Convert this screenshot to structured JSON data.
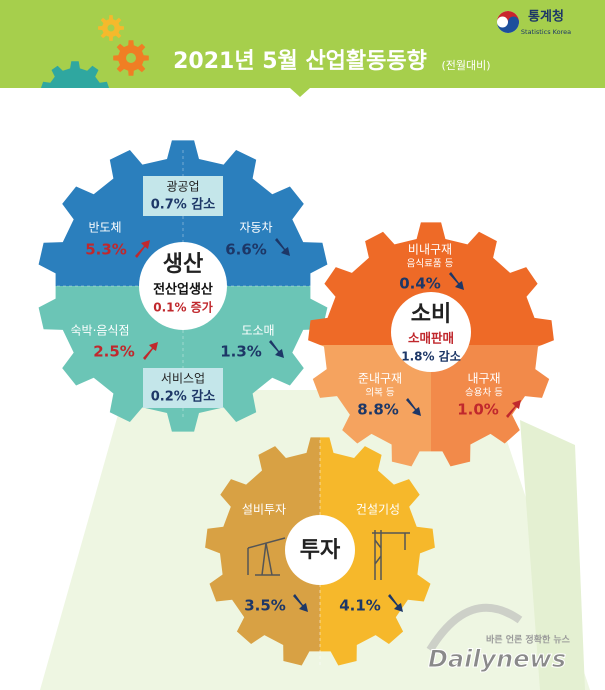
{
  "header": {
    "logo": "통계청",
    "logo_en": "Statistics Korea",
    "title": "2021년 5월 산업활동동향",
    "subtitle": "(전월대비)"
  },
  "production": {
    "label": "생산",
    "total_label": "전산업생산",
    "total_value": "0.1% 증가",
    "items": [
      {
        "name": "광공업",
        "value": "0.7% 감소"
      },
      {
        "name": "반도체",
        "value": "5.3%",
        "trend": "up"
      },
      {
        "name": "자동차",
        "value": "6.6%",
        "trend": "down"
      },
      {
        "name": "숙박·음식점",
        "value": "2.5%",
        "trend": "up"
      },
      {
        "name": "도소매",
        "value": "1.3%",
        "trend": "down"
      },
      {
        "name": "서비스업",
        "value": "0.2% 감소"
      }
    ]
  },
  "consumption": {
    "label": "소비",
    "total_label": "소매판매",
    "total_value": "1.8% 감소",
    "items": [
      {
        "name": "비내구재",
        "note": "음식료품 등",
        "value": "0.4%",
        "trend": "down"
      },
      {
        "name": "준내구재",
        "note": "의복 등",
        "value": "8.8%",
        "trend": "down"
      },
      {
        "name": "내구재",
        "note": "승용차 등",
        "value": "1.0%",
        "trend": "up"
      }
    ]
  },
  "investment": {
    "label": "투자",
    "items": [
      {
        "name": "설비투자",
        "value": "3.5%",
        "trend": "down"
      },
      {
        "name": "건설기성",
        "value": "4.1%",
        "trend": "down"
      }
    ]
  },
  "watermark": {
    "slogan": "바른 언론 정확한 뉴스",
    "brand": "Dailynews"
  }
}
